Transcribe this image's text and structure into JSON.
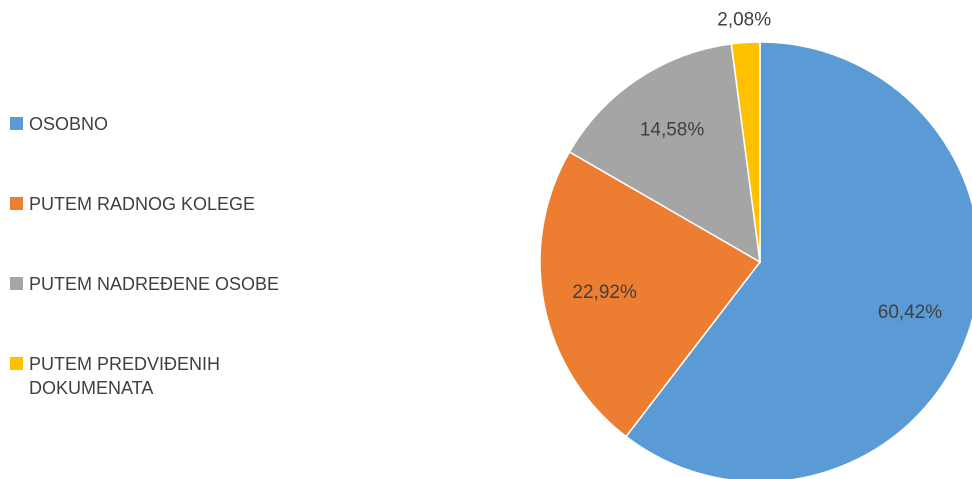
{
  "chart_data": {
    "type": "pie",
    "categories": [
      "OSOBNO",
      "PUTEM RADNOG KOLEGE",
      "PUTEM NADREĐENE OSOBE",
      "PUTEM PREDVIĐENIH DOKUMENATA"
    ],
    "values": [
      60.42,
      22.92,
      14.58,
      2.08
    ],
    "value_labels": [
      "60,42%",
      "22,92%",
      "14,58%",
      "2,08%"
    ],
    "colors": [
      "#5b9bd5",
      "#ed7d31",
      "#a5a5a5",
      "#ffc000"
    ],
    "legend": "left"
  }
}
